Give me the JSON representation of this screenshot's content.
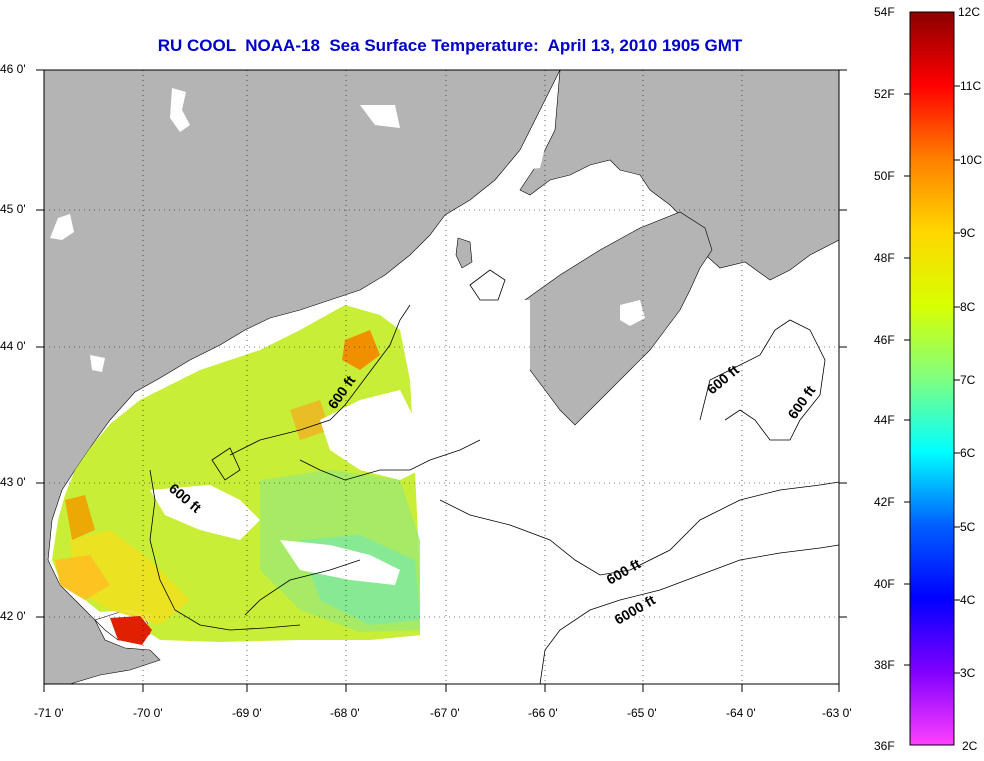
{
  "title": "RU COOL  NOAA-18  Sea Surface Temperature:  April 13, 2010 1905 GMT",
  "map": {
    "lon_range": [
      -71,
      -63
    ],
    "lat_range": [
      41.5,
      46
    ],
    "lon_ticks": [
      "-71 0'",
      "-70 0'",
      "-69 0'",
      "-68 0'",
      "-67 0'",
      "-66 0'",
      "-65 0'",
      "-64 0'",
      "-63 0'"
    ],
    "lat_ticks": [
      "46 0'",
      "45 0'",
      "44 0'",
      "43 0'",
      "42 0'"
    ],
    "grid": "dotted",
    "land_color": "#b4b4b4",
    "contour_labels": [
      "600 ft",
      "600 ft",
      "600 ft",
      "600 ft",
      "600 ft",
      "6000 ft"
    ]
  },
  "colorbar": {
    "fahrenheit": [
      "54F",
      "52F",
      "50F",
      "48F",
      "46F",
      "44F",
      "42F",
      "40F",
      "38F",
      "36F"
    ],
    "celsius": [
      "12C",
      "11C",
      "10C",
      "9C",
      "8C",
      "7C",
      "6C",
      "5C",
      "4C",
      "3C",
      "2C"
    ],
    "colors": [
      "#8b0000",
      "#ff0000",
      "#ff7f00",
      "#ffd700",
      "#d8ff00",
      "#80ff80",
      "#00ffff",
      "#0060ff",
      "#0000ff",
      "#8000ff",
      "#ff40ff"
    ]
  }
}
